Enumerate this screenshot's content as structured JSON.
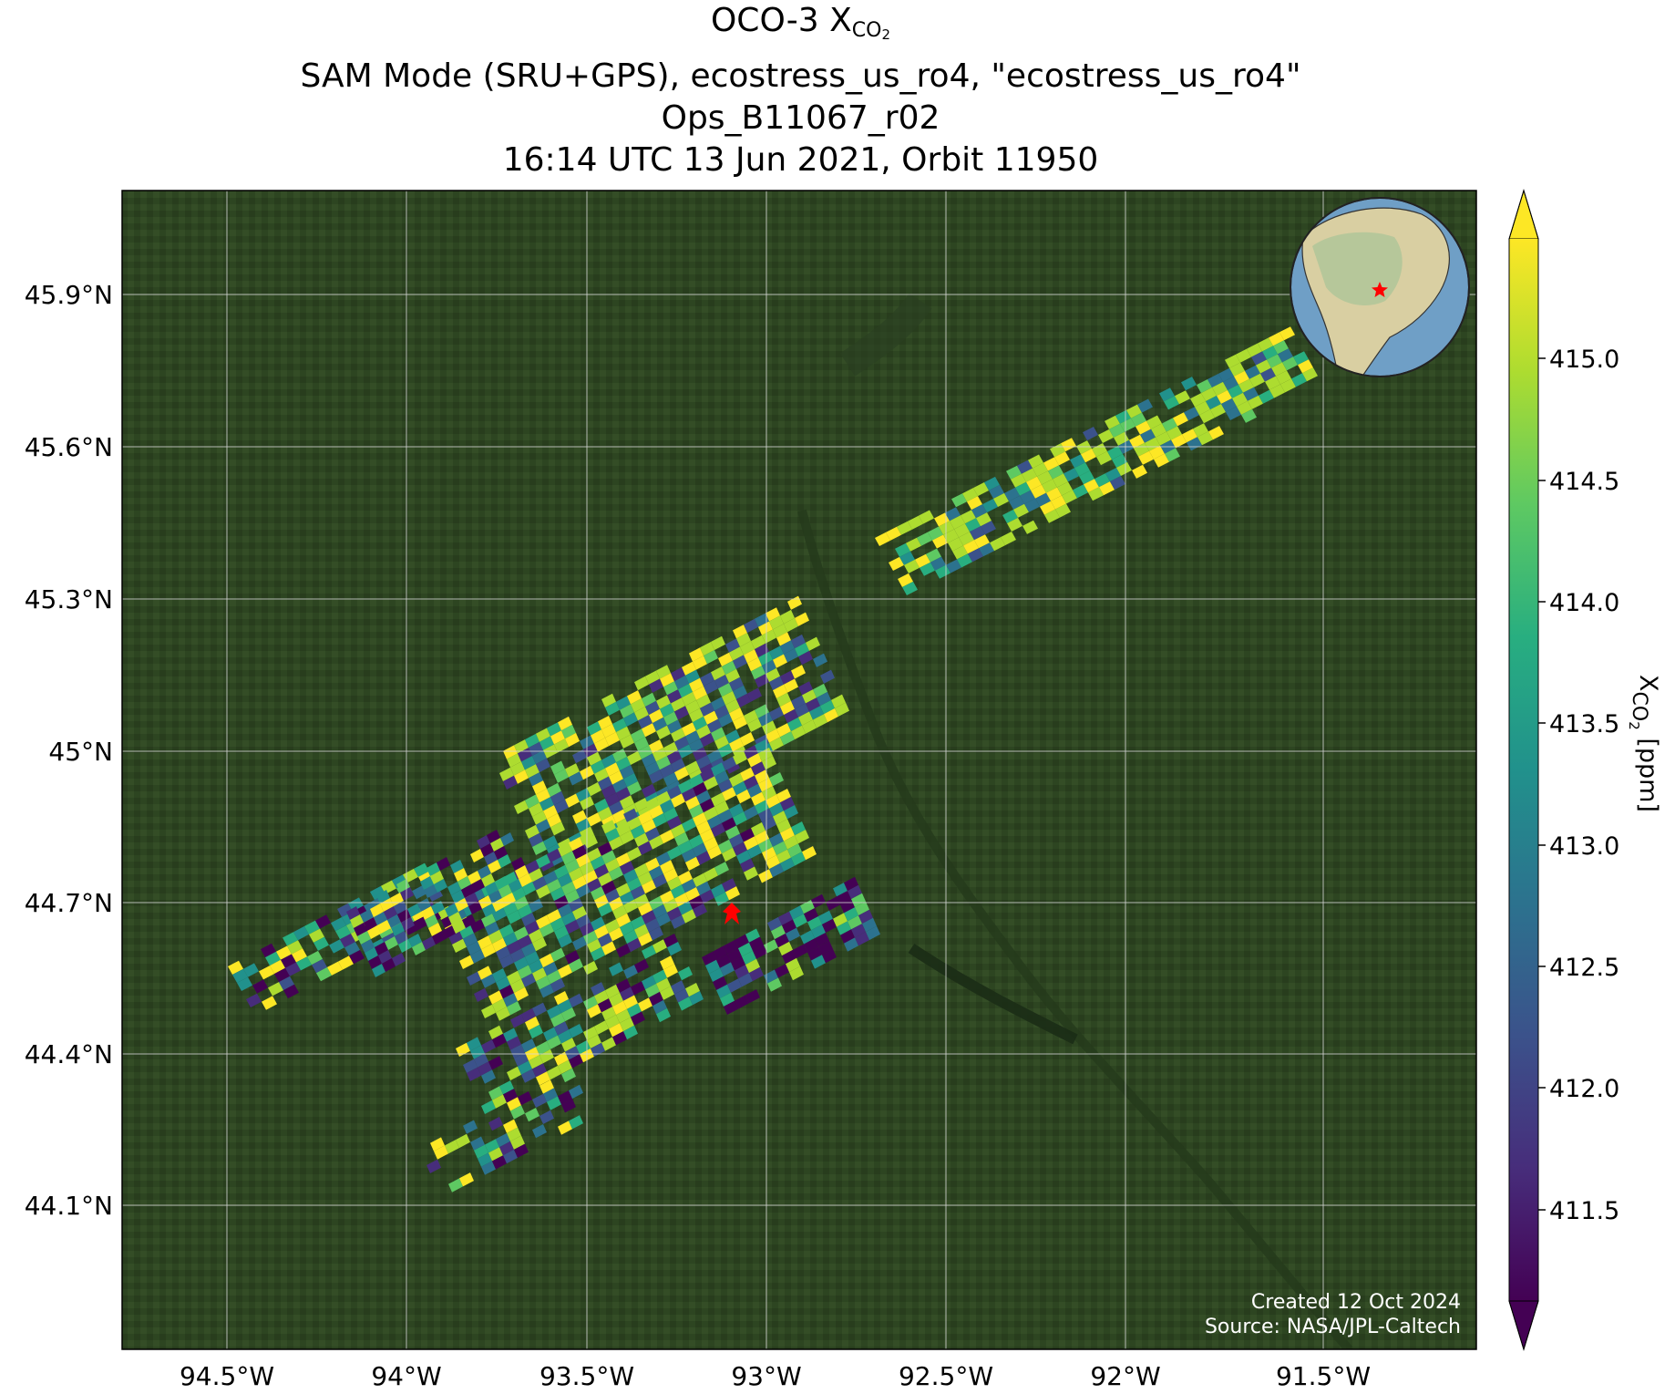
{
  "title": {
    "line1_prefix": "OCO-3 X",
    "line1_sub": "CO",
    "line1_sub2": "2",
    "line2": "SAM Mode (SRU+GPS), ecostress_us_ro4, \"ecostress_us_ro4\"",
    "line3": "Ops_B11067_r02",
    "line4": "16:14 UTC 13 Jun 2021, Orbit 11950"
  },
  "axes": {
    "lat_labels": [
      "45.9°N",
      "45.6°N",
      "45.3°N",
      "45°N",
      "44.7°N",
      "44.4°N",
      "44.1°N"
    ],
    "lon_labels": [
      "94.5°W",
      "94°W",
      "93.5°W",
      "93°W",
      "92.5°W",
      "92°W",
      "91.5°W"
    ]
  },
  "colorbar": {
    "label_main": "X",
    "label_sub": "CO",
    "label_sub2": "2",
    "label_unit": " [ppm]",
    "ticks": [
      "415.0",
      "414.5",
      "414.0",
      "413.5",
      "413.0",
      "412.5",
      "412.0",
      "411.5"
    ],
    "colormap": "viridis",
    "extend": "both"
  },
  "credits": {
    "created": "Created 12 Oct 2024",
    "source": "Source: NASA/JPL-Caltech"
  },
  "colors": {
    "background_land": "#2b4220",
    "grid": "#d8d8d8",
    "target_star": "#ff0000",
    "ocean": "#6f9fc6"
  },
  "icons": {
    "target": "red-star-icon",
    "inset": "globe-inset"
  }
}
